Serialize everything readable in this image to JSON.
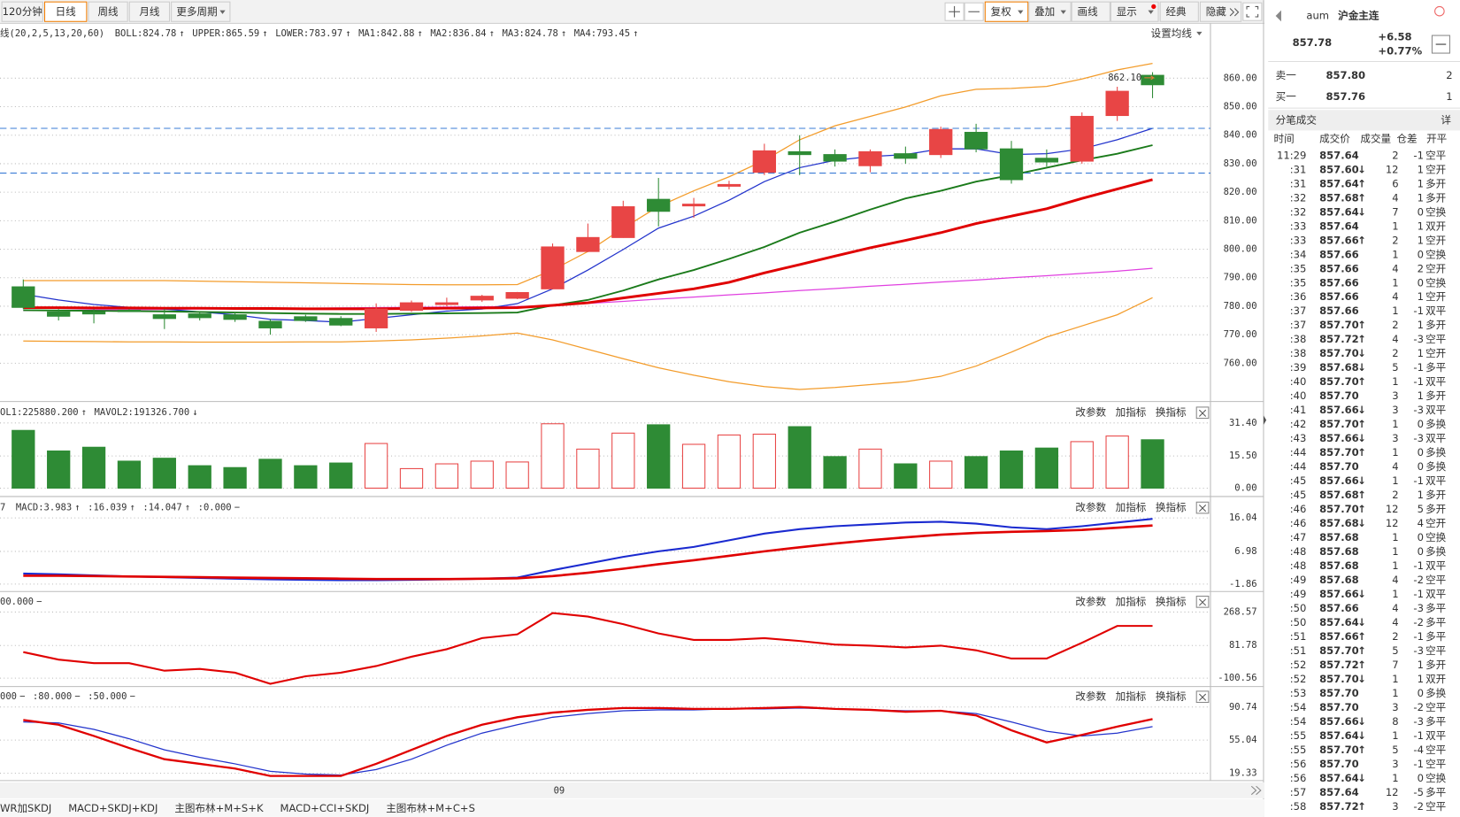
{
  "toolbar": {
    "periods": [
      "120分钟",
      "日线",
      "周线",
      "月线",
      "更多周期"
    ],
    "active_period": 1,
    "tools": [
      "复权",
      "叠加",
      "画线",
      "显示",
      "经典",
      "隐藏"
    ],
    "active_tool": 0
  },
  "main": {
    "legend": [
      {
        "text": "线(20,2,5,13,20,60)",
        "color": "#000"
      },
      {
        "text": "BOLL:824.78",
        "arrow": "↑",
        "color": "#d00"
      },
      {
        "text": "UPPER:865.59",
        "arrow": "↑",
        "color": "#f07c00"
      },
      {
        "text": "LOWER:783.97",
        "arrow": "↑",
        "color": "#f07c00"
      },
      {
        "text": "MA1:842.88",
        "arrow": "↑",
        "color": "#00c"
      },
      {
        "text": "MA2:836.84",
        "arrow": "↑",
        "color": "#080"
      },
      {
        "text": "MA3:824.78",
        "arrow": "↑",
        "color": "#d00"
      },
      {
        "text": "MA4:793.45",
        "arrow": "↑",
        "color": "#d0d"
      }
    ],
    "settings_label": "设置均线",
    "ylim": [
      746.9,
      872.7
    ],
    "yticks": [
      {
        "value": 860,
        "label": "860.00"
      },
      {
        "value": 850,
        "label": "850.00"
      },
      {
        "value": 840,
        "label": "840.00"
      },
      {
        "value": 830,
        "label": "830.00"
      },
      {
        "value": 820,
        "label": "820.00"
      },
      {
        "value": 810,
        "label": "810.00"
      },
      {
        "value": 800,
        "label": "800.00"
      },
      {
        "value": 790,
        "label": "790.00"
      },
      {
        "value": 780,
        "label": "780.00"
      },
      {
        "value": 770,
        "label": "770.00"
      },
      {
        "value": 760,
        "label": "760.00"
      }
    ],
    "up_color": "#e84545",
    "down_color": "#2e8b35",
    "candles": {
      "open": [
        786.8,
        778,
        778,
        778.6,
        777,
        777.3,
        777,
        774.7,
        776.3,
        775.7,
        772.4,
        778.6,
        780.6,
        782.2,
        782.8,
        786.1,
        799.2,
        804.1,
        817.5,
        815.2,
        822.1,
        827,
        834.2,
        833.2,
        829.3,
        833.5,
        833.2,
        841,
        835.2,
        831.9,
        830.9,
        846.9,
        861
      ],
      "high": [
        789.4,
        779,
        779,
        779,
        779,
        778,
        778,
        775.5,
        777,
        776.5,
        781,
        782,
        783,
        784,
        785,
        802,
        809,
        817,
        825,
        818,
        824,
        837,
        840,
        835,
        835,
        836,
        843,
        844,
        838,
        835,
        848,
        857,
        862.1
      ],
      "low": [
        779,
        775,
        774,
        778,
        772,
        775,
        774.5,
        770,
        774.5,
        773,
        771,
        778,
        780,
        781.5,
        782.5,
        786,
        799,
        804,
        808,
        811,
        821,
        826,
        826,
        829,
        827,
        830,
        832,
        834,
        823,
        829,
        830,
        845,
        853
      ],
      "close": [
        779.6,
        776.5,
        777.3,
        778.3,
        775.7,
        776,
        775.4,
        772.4,
        775,
        773.4,
        779,
        781.2,
        781.2,
        783.5,
        784.8,
        800.8,
        804.1,
        814.9,
        813.3,
        815.8,
        822.7,
        834.5,
        833.2,
        830.9,
        834.2,
        831.9,
        842,
        835.2,
        824.4,
        830.6,
        846.6,
        855.4,
        857.7
      ]
    },
    "lines": [
      {
        "color": "#f39c2b",
        "width": 1.2,
        "values": [
          789,
          789,
          789,
          789,
          789,
          788.8,
          788.6,
          788.4,
          788.2,
          788,
          787.8,
          787.6,
          787.5,
          787.5,
          787.6,
          792.7,
          799.2,
          807.4,
          815,
          820.5,
          825.4,
          831.2,
          838.4,
          843.3,
          846.6,
          849.9,
          853.8,
          856.1,
          856.4,
          857.1,
          859.7,
          862.9,
          865.2
        ]
      },
      {
        "color": "#f39c2b",
        "width": 1.2,
        "values": [
          767.8,
          767.7,
          767.6,
          767.5,
          767.5,
          767.4,
          767.4,
          767.4,
          767.5,
          767.5,
          767.8,
          768.2,
          768.8,
          769.6,
          770.6,
          768.2,
          764.9,
          761.6,
          758.4,
          755.8,
          753.5,
          751.8,
          750.8,
          751.5,
          752.5,
          753.5,
          755.4,
          759,
          763.9,
          769.2,
          773.1,
          777,
          783
        ]
      },
      {
        "color": "#e040e0",
        "width": 1.2,
        "values": [
          778.5,
          778.6,
          778.7,
          778.8,
          778.9,
          779,
          779.1,
          779.2,
          779.3,
          779.4,
          779.5,
          779.6,
          779.7,
          779.8,
          779.9,
          780.2,
          781,
          781.7,
          782.5,
          783.2,
          784,
          784.7,
          785.5,
          786.2,
          787,
          787.7,
          788.5,
          789.2,
          790,
          790.7,
          791.5,
          792.3,
          793.3
        ]
      },
      {
        "color": "#2233cc",
        "width": 1.2,
        "values": [
          784.2,
          782.2,
          780.6,
          779.6,
          779,
          778,
          777,
          775.4,
          775,
          774.4,
          775.7,
          777,
          778.3,
          779,
          780.9,
          786.1,
          792.7,
          799.9,
          807.4,
          811.6,
          817.2,
          823.7,
          828.6,
          831.2,
          832.5,
          833.2,
          835.2,
          835.2,
          833.2,
          833.5,
          835.2,
          838.4,
          842.4
        ]
      },
      {
        "color": "#1a7a1a",
        "width": 1.8,
        "values": [
          778.6,
          778.5,
          778.4,
          778.3,
          778.2,
          778,
          777.8,
          777.6,
          777.4,
          777.3,
          777.3,
          777.4,
          777.5,
          777.6,
          777.8,
          780.3,
          782.2,
          785.5,
          789.4,
          792.7,
          796.6,
          800.8,
          805.8,
          809.7,
          813.9,
          817.8,
          820.5,
          823.7,
          826,
          828.6,
          831.2,
          833.5,
          836.5
        ]
      },
      {
        "color": "#e00000",
        "width": 2.8,
        "values": [
          779.5,
          779.5,
          779.4,
          779.4,
          779.3,
          779.3,
          779.2,
          779.2,
          779.1,
          779.1,
          779.1,
          779.2,
          779.3,
          779.4,
          779.5,
          780.3,
          781.2,
          782.9,
          784.5,
          786.1,
          788.4,
          791.7,
          794.6,
          797.6,
          800.5,
          803.1,
          805.8,
          809,
          811.6,
          814.2,
          817.8,
          821.1,
          824.4
        ]
      }
    ],
    "ref_lines": [
      842.4,
      826.7
    ],
    "last_label": {
      "value": 862.1,
      "label": "862.10"
    }
  },
  "volume": {
    "legend": [
      {
        "text": "OL1:225880.200",
        "arrow": "↑",
        "color": "#c8c800"
      },
      {
        "text": "MAVOL2:191326.700",
        "arrow": "↓",
        "color": "#d0d"
      }
    ],
    "ylim": [
      0,
      31.4
    ],
    "yticks": [
      {
        "value": 31.4,
        "label": "31.40"
      },
      {
        "value": 15.5,
        "label": "15.50"
      },
      {
        "value": 0,
        "label": "0.00"
      }
    ],
    "values": [
      27.8,
      17.9,
      19.7,
      13,
      14.4,
      10.8,
      9.9,
      13.9,
      10.8,
      12.1,
      21.5,
      9.4,
      11.7,
      13,
      12.6,
      31,
      18.8,
      26.5,
      30.5,
      21.1,
      25.6,
      26,
      29.6,
      15.2,
      18.8,
      11.7,
      13,
      15.2,
      17.9,
      19.3,
      22.4,
      25.1,
      23.3
    ]
  },
  "macd": {
    "legend": [
      {
        "text": "7",
        "color": "#d00"
      },
      {
        "text": "MACD:3.983",
        "arrow": "↑",
        "color": "#d0d"
      },
      {
        "text": ":16.039",
        "arrow": "↑",
        "color": "#00c"
      },
      {
        "text": ":14.047",
        "arrow": "↑",
        "color": "#d00"
      },
      {
        "text": ":0.000",
        "arrow": "−",
        "color": "#999"
      }
    ],
    "ylim": [
      -1.86,
      16.04
    ],
    "yticks": [
      16.04,
      6.98,
      -1.86
    ],
    "lines": [
      {
        "color": "#1a2ad0",
        "width": 2,
        "values": [
          1,
          0.8,
          0.5,
          0.2,
          0,
          -0.2,
          -0.4,
          -0.6,
          -0.7,
          -0.8,
          -0.8,
          -0.7,
          -0.6,
          -0.4,
          -0.1,
          1.9,
          3.7,
          5.5,
          7,
          8.2,
          10,
          11.8,
          13,
          13.8,
          14.3,
          14.8,
          15,
          14.5,
          13.5,
          13,
          13.8,
          14.8,
          15.8
        ]
      },
      {
        "color": "#e00000",
        "width": 2.5,
        "values": [
          0.4,
          0.4,
          0.3,
          0.2,
          0.1,
          0,
          -0.1,
          -0.2,
          -0.3,
          -0.4,
          -0.5,
          -0.5,
          -0.5,
          -0.4,
          -0.3,
          0.3,
          1.2,
          2.3,
          3.5,
          4.6,
          5.8,
          7,
          8.1,
          9.1,
          10,
          10.8,
          11.5,
          12,
          12.3,
          12.5,
          12.8,
          13.4,
          14
        ]
      }
    ]
  },
  "cci": {
    "legend": [
      {
        "text": "00.000",
        "arrow": "−",
        "color": "#555"
      }
    ],
    "ylim": [
      -100.56,
      268.57
    ],
    "yticks": [
      268.57,
      81.78,
      -100.56
    ],
    "lines": [
      {
        "color": "#e00000",
        "width": 2,
        "values": [
          45,
          3,
          -17,
          -17,
          -59,
          -49,
          -70,
          -132,
          -90,
          -70,
          -33,
          19,
          61,
          123,
          144,
          263,
          243,
          201,
          149,
          113,
          113,
          123,
          107,
          87,
          81,
          71,
          81,
          55,
          9,
          9,
          97,
          191,
          191
        ]
      }
    ]
  },
  "kdj": {
    "legend": [
      {
        "text": "000",
        "arrow": "−",
        "color": "#999"
      },
      {
        "text": ":80.000",
        "arrow": "−",
        "color": "#999"
      },
      {
        "text": ":50.000",
        "arrow": "−",
        "color": "#999"
      }
    ],
    "ylim": [
      19.33,
      90.74
    ],
    "yticks": [
      90.74,
      55.04,
      19.33
    ],
    "lines": [
      {
        "color": "#2233cc",
        "width": 1.2,
        "values": [
          74.6,
          73.6,
          66.6,
          56.5,
          44.5,
          36.4,
          29.4,
          21.3,
          18.3,
          17.3,
          23.3,
          34.4,
          49.5,
          62.6,
          71.6,
          79.7,
          83.7,
          86.7,
          87.7,
          87.7,
          88.7,
          88.7,
          89.7,
          88.7,
          87.7,
          86.7,
          86.7,
          83.7,
          74.6,
          64.6,
          59.5,
          62.6,
          69.6
        ]
      },
      {
        "color": "#e00000",
        "width": 2.2,
        "values": [
          76.7,
          71.6,
          59.5,
          46.5,
          34.4,
          29.4,
          24.3,
          16.3,
          16.3,
          16.3,
          29.4,
          44.5,
          59.5,
          71.6,
          79.7,
          84.7,
          87.7,
          89.7,
          89.7,
          88.7,
          88.7,
          89.7,
          90.7,
          88.7,
          87.7,
          85.7,
          86.7,
          81.7,
          65.6,
          52.5,
          60.6,
          69.6,
          77.7
        ]
      }
    ]
  },
  "panel_buttons": [
    "改参数",
    "加指标",
    "换指标"
  ],
  "x_label": "09",
  "tabs": {
    "items": [
      "WR加SKDJ",
      "MACD+SKDJ+KDJ",
      "主图布林+M+S+K",
      "MACD+CCI+SKDJ",
      "主图布林+M+C+S"
    ],
    "active": 4
  },
  "quote": {
    "code": "aum",
    "name": "沪金主连",
    "price": "857.78",
    "change": "+6.58",
    "change_pct": "+0.77%",
    "ask_label": "卖一",
    "ask": "857.80",
    "ask_vol": 2,
    "bid_label": "买一",
    "bid": "857.76",
    "bid_vol": 1
  },
  "trades": {
    "title": "分笔成交",
    "detail": "详",
    "columns": [
      "时间",
      "成交价",
      "成交量",
      "仓差",
      "开平"
    ],
    "arrow_colors": {
      "↑": "#e00",
      "↓": "#090"
    },
    "rows": [
      [
        "11:29",
        "857.64",
        null,
        2,
        -1,
        "空平",
        "#e00"
      ],
      [
        ":31",
        "857.60",
        "↓",
        12,
        1,
        "空开",
        "#090"
      ],
      [
        ":31",
        "857.64",
        "↑",
        6,
        1,
        "多开",
        "#e00"
      ],
      [
        ":32",
        "857.68",
        "↑",
        4,
        1,
        "多开",
        "#e00"
      ],
      [
        ":32",
        "857.64",
        "↓",
        7,
        0,
        "空换",
        "#090"
      ],
      [
        ":33",
        "857.64",
        null,
        1,
        1,
        "双开",
        "#e00"
      ],
      [
        ":33",
        "857.66",
        "↑",
        2,
        1,
        "空开",
        "#090"
      ],
      [
        ":34",
        "857.66",
        null,
        1,
        0,
        "空换",
        "#090"
      ],
      [
        ":35",
        "857.66",
        null,
        4,
        2,
        "空开",
        "#090"
      ],
      [
        ":35",
        "857.66",
        null,
        1,
        0,
        "空换",
        "#090"
      ],
      [
        ":36",
        "857.66",
        null,
        4,
        1,
        "空开",
        "#090"
      ],
      [
        ":37",
        "857.66",
        null,
        1,
        -1,
        "双平",
        "#090"
      ],
      [
        ":37",
        "857.70",
        "↑",
        2,
        1,
        "多开",
        "#e00"
      ],
      [
        ":38",
        "857.72",
        "↑",
        4,
        -3,
        "空平",
        "#e00"
      ],
      [
        ":38",
        "857.70",
        "↓",
        2,
        1,
        "空开",
        "#090"
      ],
      [
        ":39",
        "857.68",
        "↓",
        5,
        -1,
        "多平",
        "#090"
      ],
      [
        ":40",
        "857.70",
        "↑",
        1,
        -1,
        "双平",
        "#090"
      ],
      [
        ":40",
        "857.70",
        null,
        3,
        1,
        "多开",
        "#e00"
      ],
      [
        ":41",
        "857.66",
        "↓",
        3,
        -3,
        "双平",
        "#090"
      ],
      [
        ":42",
        "857.70",
        "↑",
        1,
        0,
        "多换",
        "#e00"
      ],
      [
        ":43",
        "857.66",
        "↓",
        3,
        -3,
        "双平",
        "#090"
      ],
      [
        ":44",
        "857.70",
        "↑",
        1,
        0,
        "多换",
        "#e00"
      ],
      [
        ":44",
        "857.70",
        null,
        4,
        0,
        "多换",
        "#e00"
      ],
      [
        ":45",
        "857.66",
        "↓",
        1,
        -1,
        "双平",
        "#090"
      ],
      [
        ":45",
        "857.68",
        "↑",
        2,
        1,
        "多开",
        "#e00"
      ],
      [
        ":46",
        "857.70",
        "↑",
        12,
        5,
        "多开",
        "#e00"
      ],
      [
        ":46",
        "857.68",
        "↓",
        12,
        4,
        "空开",
        "#090"
      ],
      [
        ":47",
        "857.68",
        null,
        1,
        0,
        "空换",
        "#090"
      ],
      [
        ":48",
        "857.68",
        null,
        1,
        0,
        "多换",
        "#e00"
      ],
      [
        ":48",
        "857.68",
        null,
        1,
        -1,
        "双平",
        "#090"
      ],
      [
        ":49",
        "857.68",
        null,
        4,
        -2,
        "空平",
        "#e00"
      ],
      [
        ":49",
        "857.66",
        "↓",
        1,
        -1,
        "双平",
        "#090"
      ],
      [
        ":50",
        "857.66",
        null,
        4,
        -3,
        "多平",
        "#090"
      ],
      [
        ":50",
        "857.64",
        "↓",
        4,
        -2,
        "多平",
        "#090"
      ],
      [
        ":51",
        "857.66",
        "↑",
        2,
        -1,
        "多平",
        "#090"
      ],
      [
        ":51",
        "857.70",
        "↑",
        5,
        -3,
        "空平",
        "#e00"
      ],
      [
        ":52",
        "857.72",
        "↑",
        7,
        1,
        "多开",
        "#e00"
      ],
      [
        ":52",
        "857.70",
        "↓",
        1,
        1,
        "双开",
        "#e00"
      ],
      [
        ":53",
        "857.70",
        null,
        1,
        0,
        "多换",
        "#e00"
      ],
      [
        ":54",
        "857.70",
        null,
        3,
        -2,
        "空平",
        "#e00"
      ],
      [
        ":54",
        "857.66",
        "↓",
        8,
        -3,
        "多平",
        "#090"
      ],
      [
        ":55",
        "857.64",
        "↓",
        1,
        -1,
        "双平",
        "#090"
      ],
      [
        ":55",
        "857.70",
        "↑",
        5,
        -4,
        "空平",
        "#e00"
      ],
      [
        ":56",
        "857.70",
        null,
        3,
        -1,
        "空平",
        "#e00"
      ],
      [
        ":56",
        "857.64",
        "↓",
        1,
        0,
        "空换",
        "#090"
      ],
      [
        ":57",
        "857.64",
        null,
        12,
        -5,
        "多平",
        "#090"
      ],
      [
        ":58",
        "857.72",
        "↑",
        3,
        -2,
        "空平",
        "#e00"
      ]
    ]
  }
}
